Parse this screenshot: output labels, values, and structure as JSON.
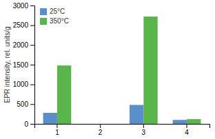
{
  "chart_data": {
    "type": "bar",
    "categories": [
      "1",
      "2",
      "3",
      "4"
    ],
    "series": [
      {
        "name": "25°C",
        "color": "#5b8fc9",
        "values": [
          280,
          0,
          480,
          100
        ]
      },
      {
        "name": "350°C",
        "color": "#5ab54b",
        "values": [
          1480,
          0,
          2720,
          120
        ]
      }
    ],
    "ylabel": "EPR intensity, rel. units/g",
    "ylim": [
      0,
      3000
    ],
    "yticks": [
      0,
      500,
      1000,
      1500,
      2000,
      2500,
      3000
    ],
    "grid": false,
    "legend": "upper left"
  }
}
